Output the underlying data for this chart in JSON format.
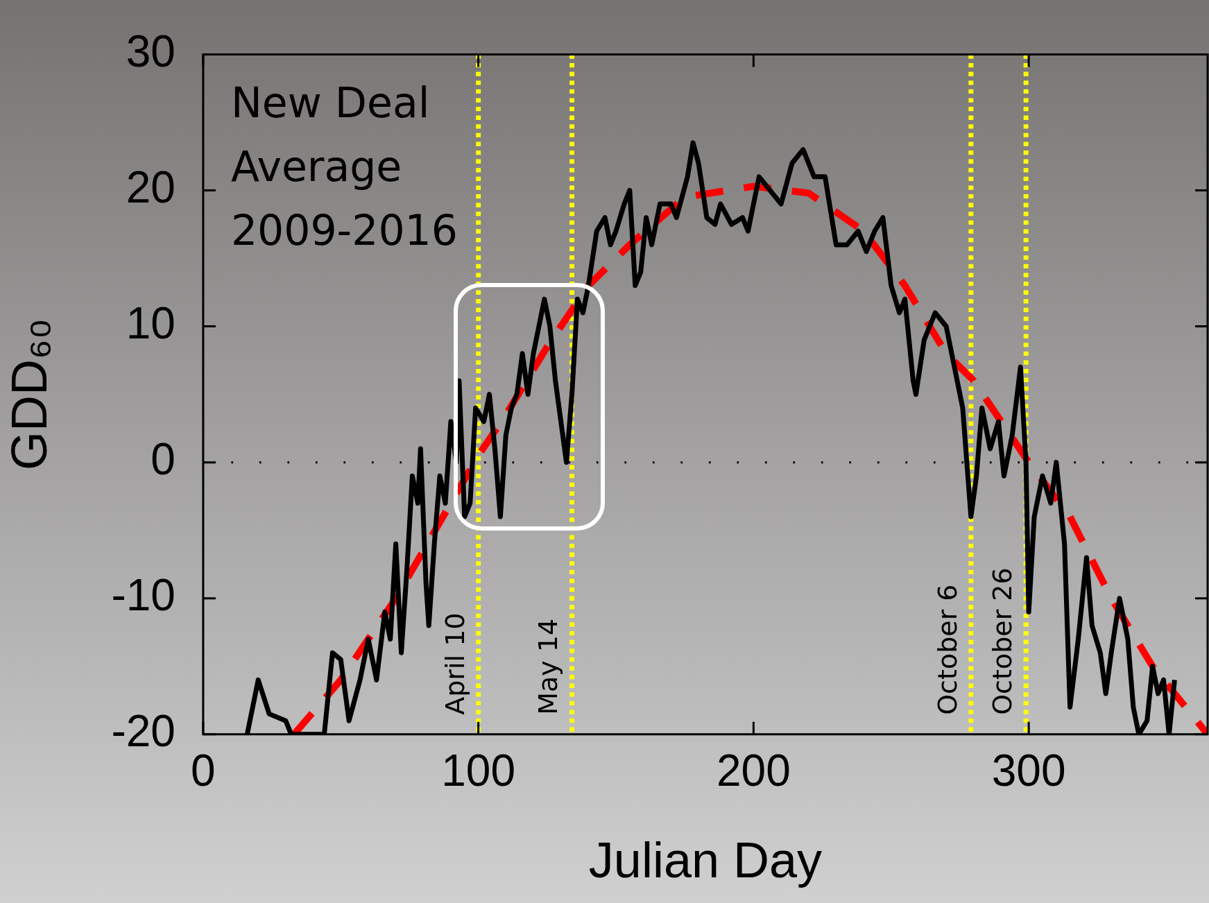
{
  "chart_data": {
    "type": "line",
    "xlabel": "Julian Day",
    "ylabel": "GDD₆₀",
    "annotations": [
      "New Deal\nAverage\n2009-2016"
    ],
    "xlim": [
      0,
      365
    ],
    "xticks": [
      0,
      100,
      200,
      300
    ],
    "ylim": [
      -20,
      30
    ],
    "yticks": [
      -20,
      -10,
      0,
      10,
      20,
      30
    ],
    "grid": false,
    "legend": false,
    "marker": "none",
    "series": [
      {
        "color": "#000000",
        "line_style": "solid",
        "x": [
          16,
          20,
          24,
          30,
          32,
          44,
          47,
          50,
          53,
          57,
          60,
          63,
          66,
          68,
          70,
          72,
          74,
          76,
          78,
          79,
          81,
          82,
          84,
          86,
          88,
          90,
          92,
          93,
          95,
          97,
          99,
          102,
          104,
          106,
          108,
          110,
          112,
          114,
          116,
          118,
          120,
          122,
          124,
          126,
          128,
          130,
          132,
          134,
          136,
          138,
          140,
          143,
          146,
          148,
          150,
          153,
          155,
          157,
          159,
          161,
          163,
          166,
          170,
          172,
          176,
          178,
          180,
          183,
          186,
          188,
          192,
          196,
          198,
          202,
          206,
          210,
          214,
          218,
          222,
          226,
          230,
          234,
          238,
          241,
          244,
          247,
          250,
          253,
          255,
          258,
          259,
          262,
          266,
          270,
          274,
          276,
          279,
          281,
          283,
          286,
          289,
          291,
          294,
          297,
          299,
          300,
          302,
          305,
          308,
          310,
          313,
          315,
          318,
          321,
          323,
          326,
          328,
          330,
          333,
          336,
          338,
          340,
          343,
          345,
          347,
          349,
          351,
          353
        ],
        "values": [
          -20,
          -16,
          -18.5,
          -19,
          -20,
          -20,
          -14,
          -14.5,
          -19,
          -16,
          -13,
          -16,
          -11,
          -13,
          -6,
          -14,
          -8,
          -1,
          -3,
          1,
          -9,
          -12,
          -6,
          -1,
          -3,
          3,
          0,
          6,
          -4,
          -3,
          4,
          3,
          5,
          1,
          -4,
          2,
          4,
          5,
          8,
          5,
          8,
          10,
          12,
          10,
          6,
          3,
          0,
          5,
          12,
          11,
          13,
          17,
          18,
          16,
          17,
          19,
          20,
          13,
          14,
          18,
          16,
          19,
          19,
          18,
          21,
          23.5,
          22,
          18,
          17.5,
          19,
          17.5,
          18,
          17,
          21,
          20,
          19,
          22,
          23,
          21,
          21,
          16,
          16,
          17,
          15.5,
          17,
          18,
          13,
          11,
          12,
          6,
          5,
          9,
          11,
          10,
          6,
          4,
          -4,
          -1,
          4,
          1,
          3,
          -1,
          2,
          7,
          0,
          -11,
          -4,
          -1,
          -3,
          0,
          -6,
          -18,
          -13,
          -7,
          -12,
          -14,
          -17,
          -14,
          -10,
          -13,
          -18,
          -20,
          -19,
          -15,
          -17,
          -16,
          -20,
          -16
        ]
      },
      {
        "color": "#ff0000",
        "line_style": "dashed",
        "x": [
          33,
          50,
          70,
          90,
          100,
          110,
          125,
          140,
          155,
          175,
          200,
          220,
          240,
          255,
          270,
          280,
          290,
          300,
          315,
          330,
          345,
          365
        ],
        "values": [
          -20,
          -16,
          -10,
          -3,
          0.5,
          3.5,
          8.5,
          13,
          16,
          19.5,
          20.3,
          19.8,
          17,
          13,
          8,
          6,
          3,
          0,
          -4,
          -10,
          -15,
          -20
        ]
      }
    ],
    "ref_lines": [
      {
        "axis": "y",
        "value": 0,
        "color": "#000000",
        "line_style": "dotted"
      },
      {
        "axis": "x",
        "value": 100,
        "label": "April 10",
        "color": "#ffff00",
        "line_style": "dotted"
      },
      {
        "axis": "x",
        "value": 134,
        "label": "May 14",
        "color": "#ffff00",
        "line_style": "dotted"
      },
      {
        "axis": "x",
        "value": 279,
        "label": "October 6",
        "color": "#ffff00",
        "line_style": "dotted"
      },
      {
        "axis": "x",
        "value": 299,
        "label": "October 26",
        "color": "#ffff00",
        "line_style": "dotted"
      }
    ]
  }
}
